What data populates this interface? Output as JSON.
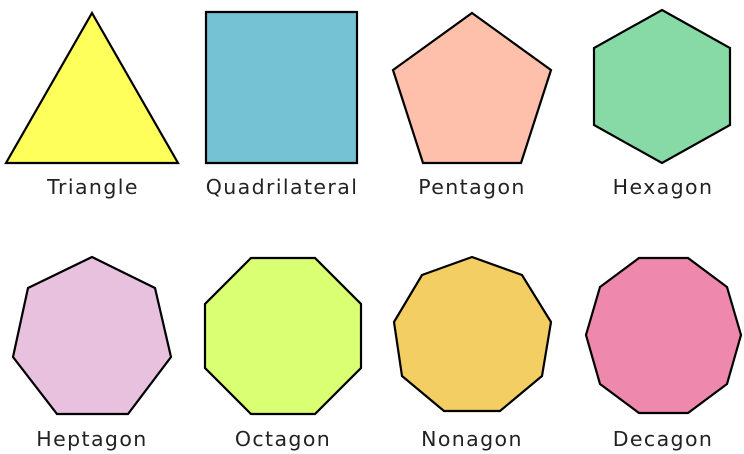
{
  "shapes": [
    {
      "id": "triangle",
      "label": "Triangle",
      "sides": 3,
      "color": "#FFFF5B"
    },
    {
      "id": "quadrilateral",
      "label": "Quadrilateral",
      "sides": 4,
      "color": "#75C2D5"
    },
    {
      "id": "pentagon",
      "label": "Pentagon",
      "sides": 5,
      "color": "#FEBFAB"
    },
    {
      "id": "hexagon",
      "label": "Hexagon",
      "sides": 6,
      "color": "#87D9A6"
    },
    {
      "id": "heptagon",
      "label": "Heptagon",
      "sides": 7,
      "color": "#E8C1DE"
    },
    {
      "id": "octagon",
      "label": "Octagon",
      "sides": 8,
      "color": "#DBFF73"
    },
    {
      "id": "nonagon",
      "label": "Nonagon",
      "sides": 9,
      "color": "#F3CE63"
    },
    {
      "id": "decagon",
      "label": "Decagon",
      "sides": 10,
      "color": "#EE88AD"
    }
  ]
}
